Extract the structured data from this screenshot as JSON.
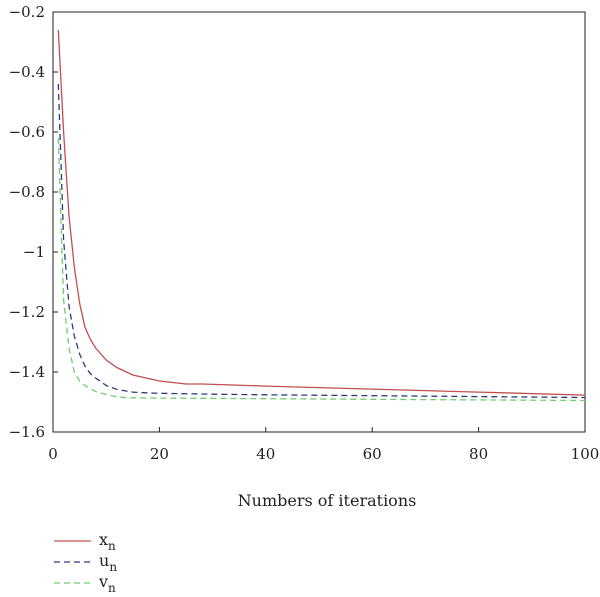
{
  "chart_data": {
    "type": "line",
    "title": "",
    "xlabel": "Numbers of iterations",
    "ylabel": "",
    "xlim": [
      0,
      100
    ],
    "ylim": [
      -1.6,
      -0.2
    ],
    "xticks": [
      "0",
      "20",
      "40",
      "60",
      "80",
      "100"
    ],
    "yticks": [
      "-0.2",
      "-0.4",
      "-0.6",
      "-0.8",
      "-1",
      "-1.2",
      "-1.4",
      "-1.6"
    ],
    "grid": false,
    "legend_position": "bottom-left, below plot",
    "series": [
      {
        "name": "x_n",
        "label_main": "x",
        "label_sub": "n",
        "color": "#c0504d",
        "dash": "solid",
        "x": [
          1,
          2,
          3,
          4,
          5,
          6,
          7,
          8,
          10,
          12,
          15,
          20,
          25,
          28,
          40,
          60,
          80,
          100
        ],
        "y": [
          -0.26,
          -0.6,
          -0.88,
          -1.05,
          -1.17,
          -1.25,
          -1.29,
          -1.32,
          -1.36,
          -1.385,
          -1.41,
          -1.43,
          -1.44,
          -1.44,
          -1.447,
          -1.457,
          -1.467,
          -1.477
        ]
      },
      {
        "name": "u_n",
        "label_main": "u",
        "label_sub": "n",
        "color": "#2e3a78",
        "dash": "dashed",
        "x": [
          1,
          2,
          3,
          4,
          5,
          6,
          7,
          8,
          10,
          12,
          15,
          18,
          20,
          30,
          40,
          60,
          80,
          100
        ],
        "y": [
          -0.44,
          -0.96,
          -1.18,
          -1.28,
          -1.34,
          -1.38,
          -1.405,
          -1.42,
          -1.445,
          -1.458,
          -1.467,
          -1.47,
          -1.471,
          -1.474,
          -1.476,
          -1.479,
          -1.482,
          -1.485
        ]
      },
      {
        "name": "v_n",
        "label_main": "v",
        "label_sub": "n",
        "color": "#6fcf6f",
        "dash": "dashed",
        "x": [
          1,
          2,
          3,
          4,
          5,
          6,
          8,
          10,
          12,
          14,
          20,
          30,
          40,
          60,
          80,
          100
        ],
        "y": [
          -0.62,
          -1.16,
          -1.32,
          -1.4,
          -1.43,
          -1.445,
          -1.465,
          -1.475,
          -1.483,
          -1.486,
          -1.487,
          -1.488,
          -1.489,
          -1.491,
          -1.493,
          -1.495
        ]
      }
    ]
  }
}
